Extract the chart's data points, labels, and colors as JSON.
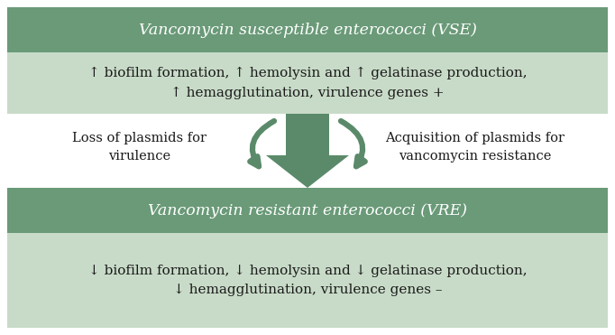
{
  "bg_color": "#ffffff",
  "dark_green": "#6a9a78",
  "light_green": "#c8dbc8",
  "arrow_green": "#5a8a6a",
  "vse_text": "Vancomycin susceptible enterococci (VSE)",
  "vse_detail": "↑ biofilm formation, ↑ hemolysin and ↑ gelatinase production,\n↑ hemagglutination, virulence genes +",
  "vre_text": "Vancomycin resistant enterococci (VRE)",
  "vre_detail": "↓ biofilm formation, ↓ hemolysin and ↓ gelatinase production,\n↓ hemagglutination, virulence genes –",
  "left_label": "Loss of plasmids for\nvirulence",
  "right_label": "Acquisition of plasmids for\nvancomycin resistance",
  "text_color_dark": "#1a1a1a",
  "text_color_white": "#ffffff",
  "figw": 6.82,
  "figh": 3.71,
  "dpi": 100
}
